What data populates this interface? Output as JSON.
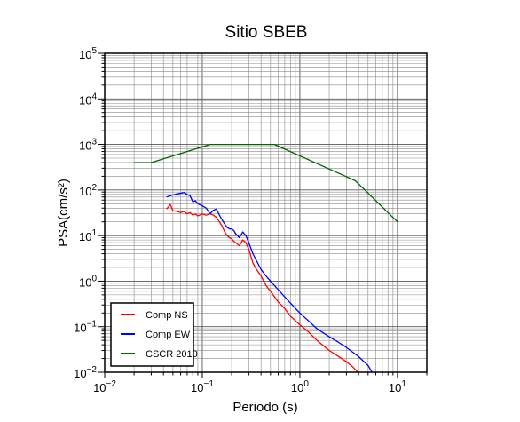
{
  "chart_data": {
    "type": "line",
    "title": "Sitio SBEB",
    "xlabel": "Periodo (s)",
    "ylabel": "PSA(cm/s²)",
    "x_scale": "log",
    "y_scale": "log",
    "xlim": [
      0.01,
      20
    ],
    "ylim": [
      0.01,
      100000
    ],
    "grid": true,
    "legend_position": "bottom-left",
    "x_ticks": [
      {
        "base": "10",
        "exp": "−2",
        "value": 0.01
      },
      {
        "base": "10",
        "exp": "−1",
        "value": 0.1
      },
      {
        "base": "10",
        "exp": "0",
        "value": 1
      },
      {
        "base": "10",
        "exp": "1",
        "value": 10
      }
    ],
    "y_ticks": [
      {
        "base": "10",
        "exp": "−2",
        "value": 0.01
      },
      {
        "base": "10",
        "exp": "−1",
        "value": 0.1
      },
      {
        "base": "10",
        "exp": "0",
        "value": 1
      },
      {
        "base": "10",
        "exp": "1",
        "value": 10
      },
      {
        "base": "10",
        "exp": "2",
        "value": 100
      },
      {
        "base": "10",
        "exp": "3",
        "value": 1000
      },
      {
        "base": "10",
        "exp": "4",
        "value": 10000
      },
      {
        "base": "10",
        "exp": "5",
        "value": 100000
      }
    ],
    "series": [
      {
        "name": "Comp NS",
        "color": "#ff0000",
        "x": [
          0.043,
          0.047,
          0.05,
          0.055,
          0.06,
          0.065,
          0.07,
          0.075,
          0.08,
          0.085,
          0.09,
          0.1,
          0.11,
          0.12,
          0.13,
          0.14,
          0.15,
          0.16,
          0.17,
          0.18,
          0.19,
          0.2,
          0.21,
          0.22,
          0.24,
          0.26,
          0.28,
          0.3,
          0.33,
          0.36,
          0.4,
          0.45,
          0.5,
          0.6,
          0.7,
          0.8,
          1.0,
          1.2,
          1.5,
          2.0,
          2.5,
          3.0,
          3.5,
          4.0
        ],
        "y": [
          38,
          48,
          35,
          34,
          32,
          34,
          30,
          32,
          28,
          30,
          27,
          30,
          28,
          30,
          28,
          25,
          20,
          16,
          12,
          10,
          9,
          8.5,
          7.5,
          7,
          6,
          8,
          7,
          5,
          2.5,
          1.8,
          1.3,
          0.8,
          0.6,
          0.35,
          0.25,
          0.17,
          0.11,
          0.08,
          0.05,
          0.03,
          0.022,
          0.017,
          0.013,
          0.0095
        ]
      },
      {
        "name": "Comp EW",
        "color": "#0000ff",
        "x": [
          0.043,
          0.047,
          0.05,
          0.055,
          0.06,
          0.065,
          0.07,
          0.075,
          0.08,
          0.085,
          0.09,
          0.1,
          0.11,
          0.12,
          0.13,
          0.14,
          0.15,
          0.16,
          0.17,
          0.18,
          0.19,
          0.2,
          0.21,
          0.22,
          0.24,
          0.26,
          0.28,
          0.3,
          0.33,
          0.36,
          0.4,
          0.45,
          0.5,
          0.6,
          0.7,
          0.8,
          1.0,
          1.2,
          1.5,
          2.0,
          2.5,
          3.0,
          4.0,
          5.0,
          5.5
        ],
        "y": [
          70,
          75,
          78,
          82,
          85,
          88,
          80,
          75,
          55,
          58,
          50,
          45,
          40,
          30,
          36,
          38,
          28,
          22,
          18,
          15,
          14,
          14,
          13,
          11,
          9,
          12,
          10,
          7,
          4,
          2.8,
          1.8,
          1.3,
          1.0,
          0.65,
          0.45,
          0.33,
          0.2,
          0.14,
          0.09,
          0.06,
          0.045,
          0.035,
          0.022,
          0.014,
          0.01
        ]
      },
      {
        "name": "CSCR 2010",
        "color": "#006400",
        "x": [
          0.02,
          0.03,
          0.12,
          0.55,
          3.7,
          10
        ],
        "y": [
          400,
          400,
          1000,
          1000,
          160,
          20
        ]
      }
    ]
  }
}
